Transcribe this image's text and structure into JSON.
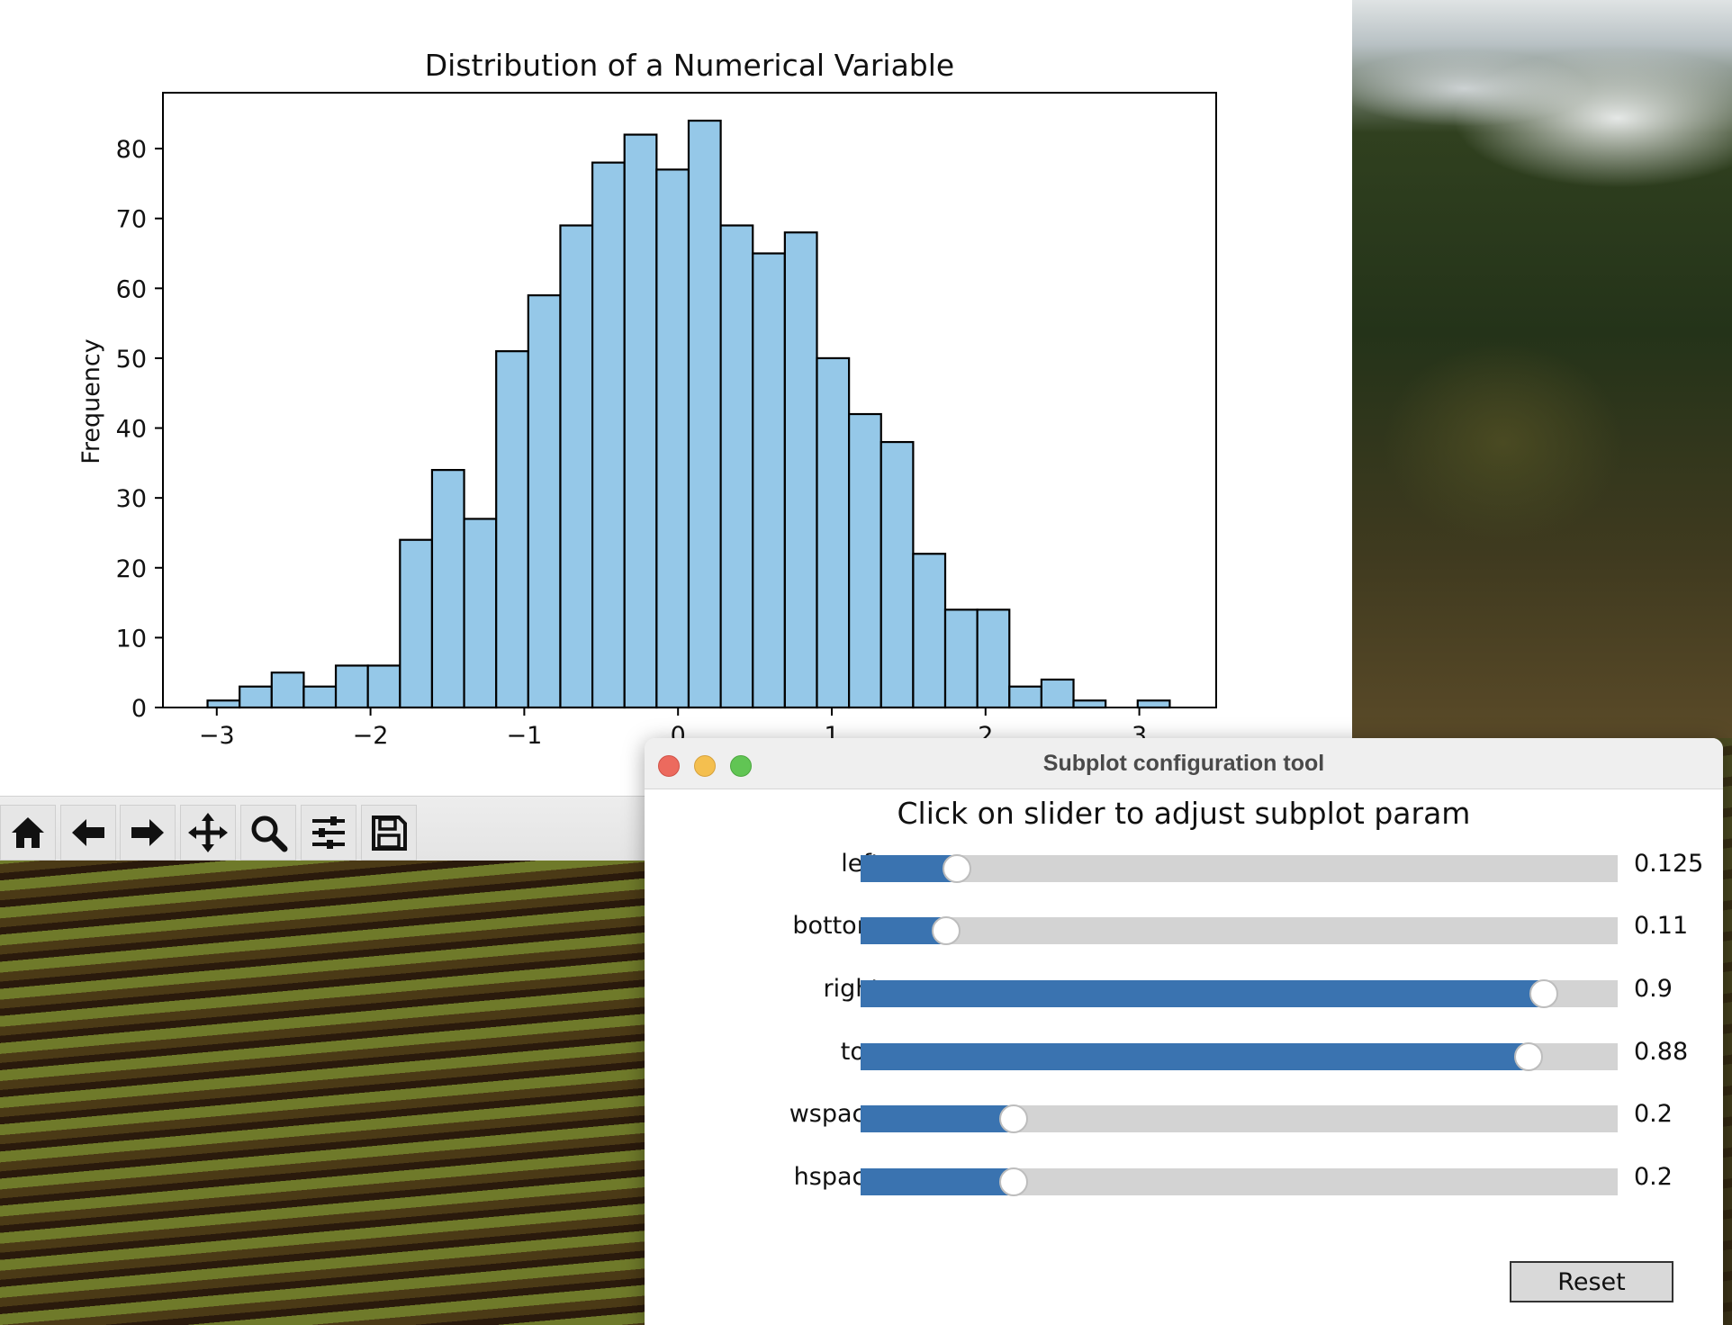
{
  "desktop": {
    "wallpaper": "vineyard-landscape"
  },
  "figure": {
    "toolbar": {
      "buttons": [
        {
          "name": "home-icon"
        },
        {
          "name": "back-arrow-icon"
        },
        {
          "name": "forward-arrow-icon"
        },
        {
          "name": "pan-icon"
        },
        {
          "name": "zoom-icon"
        },
        {
          "name": "configure-subplots-icon"
        },
        {
          "name": "save-icon"
        }
      ]
    }
  },
  "chart_data": {
    "type": "bar",
    "title": "Distribution of a Numerical Variable",
    "xlabel": "",
    "ylabel": "Frequency",
    "xlim": [
      -3.35,
      3.5
    ],
    "ylim": [
      0,
      88
    ],
    "x_ticks": [
      "−3",
      "−2",
      "−1",
      "0",
      "1",
      "2",
      "3"
    ],
    "x_tick_values": [
      -3,
      -2,
      -1,
      0,
      1,
      2,
      3
    ],
    "y_ticks": [
      "0",
      "10",
      "20",
      "30",
      "40",
      "50",
      "60",
      "70",
      "80"
    ],
    "y_tick_values": [
      0,
      10,
      20,
      30,
      40,
      50,
      60,
      70,
      80
    ],
    "bin_start": -3.06,
    "bin_width": 0.2086,
    "values": [
      1,
      3,
      5,
      3,
      6,
      6,
      24,
      34,
      27,
      51,
      59,
      69,
      78,
      82,
      77,
      84,
      69,
      65,
      68,
      50,
      42,
      38,
      22,
      14,
      14,
      3,
      4,
      1,
      0,
      1
    ],
    "bar_color": "#95c8e8",
    "edge_color": "#000000",
    "grid": false
  },
  "dialog": {
    "title": "Subplot configuration tool",
    "instructions": "Click on slider to adjust subplot param",
    "accent_color": "#3a73b0",
    "sliders": [
      {
        "label": "left",
        "value": "0.125",
        "fraction": 0.125
      },
      {
        "label": "bottom",
        "value": "0.11",
        "fraction": 0.11
      },
      {
        "label": "right",
        "value": "0.9",
        "fraction": 0.9
      },
      {
        "label": "top",
        "value": "0.88",
        "fraction": 0.88
      },
      {
        "label": "wspace",
        "value": "0.2",
        "fraction": 0.2
      },
      {
        "label": "hspace",
        "value": "0.2",
        "fraction": 0.2
      }
    ],
    "reset_label": "Reset"
  }
}
